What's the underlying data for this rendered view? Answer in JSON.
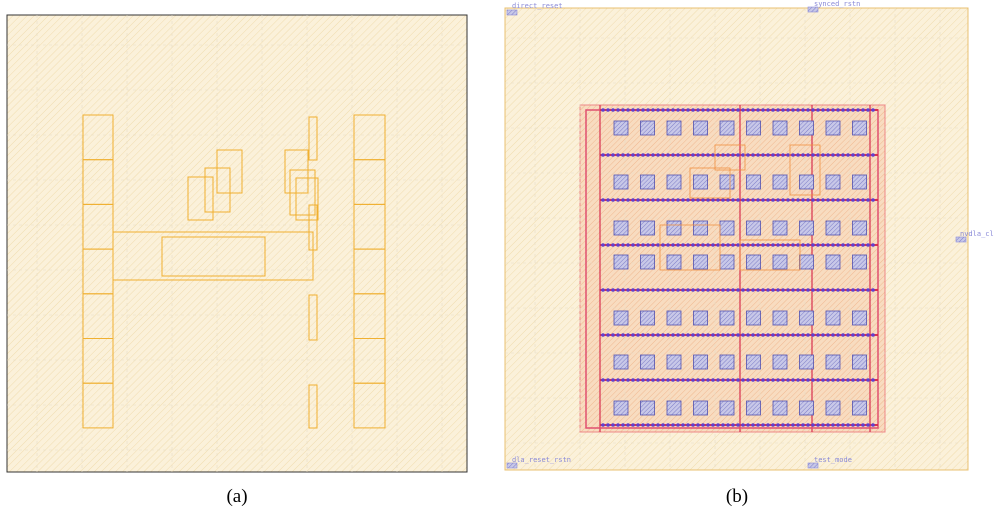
{
  "panels": [
    {
      "caption": "(a)"
    },
    {
      "caption": "(b)",
      "pins": [
        "direct_reset",
        "synced_rstn",
        "nvdla_cl",
        "dla_reset_rstn",
        "test_mode"
      ]
    }
  ]
}
